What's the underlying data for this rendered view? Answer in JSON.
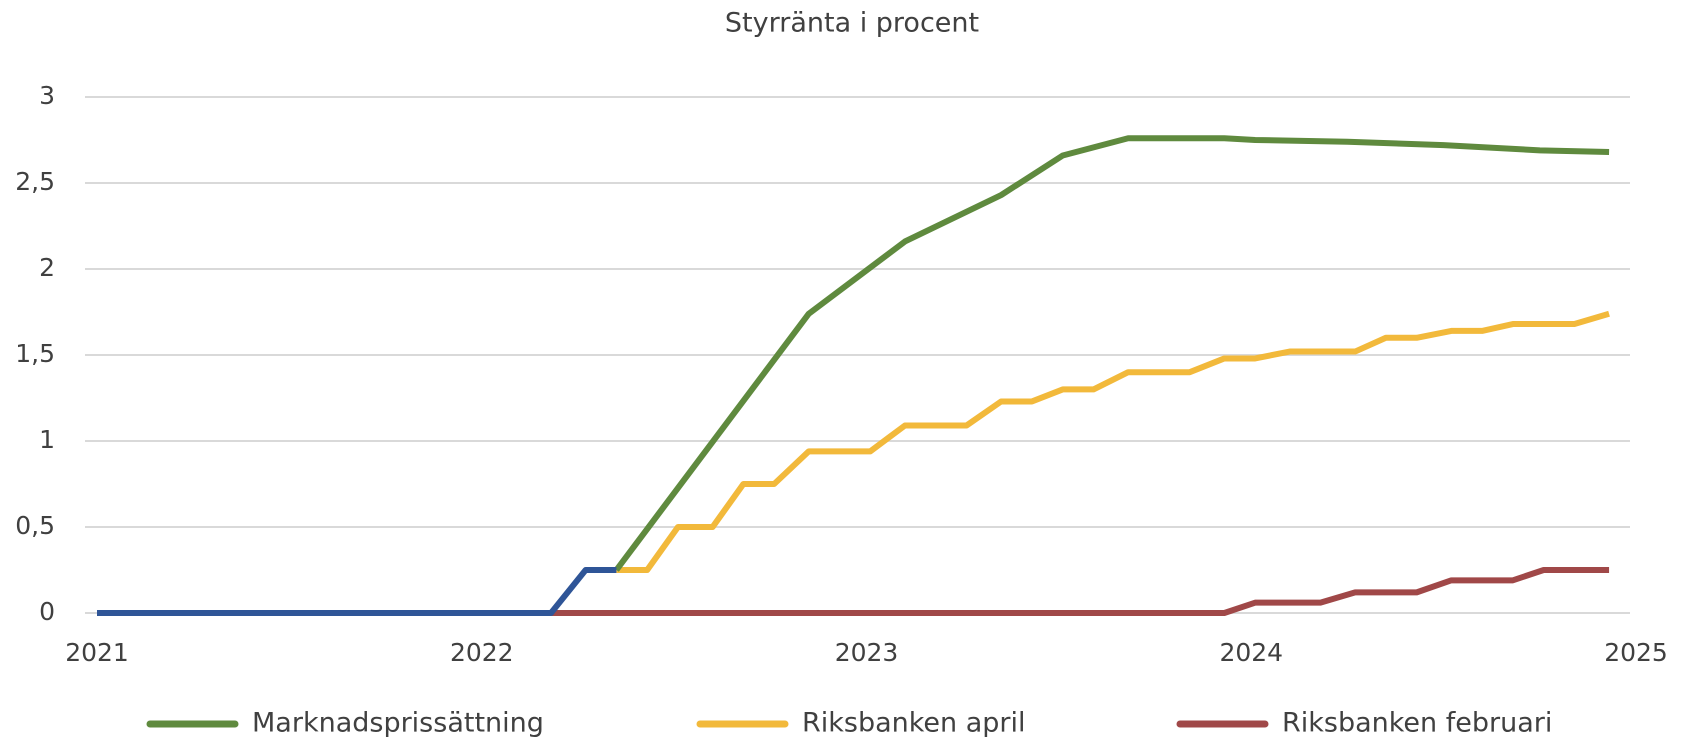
{
  "chart_data": {
    "type": "line",
    "title": "Styrränta i procent",
    "xlim": [
      2021,
      2025
    ],
    "xticks": [
      2021,
      2022,
      2023,
      2024,
      2025
    ],
    "ylim": [
      0,
      3
    ],
    "yticks": [
      0,
      {
        "value": 0.5,
        "label": "0,5"
      },
      1,
      {
        "value": 1.5,
        "label": "1,5"
      },
      2,
      {
        "value": 2.5,
        "label": "2,5"
      },
      3
    ],
    "grid": true,
    "legend": "bottom",
    "series": [
      {
        "name": "Marknadsprissättning",
        "color": "#5f8a3e",
        "x": [
          2022.35,
          2022.85,
          2023.1,
          2023.35,
          2023.51,
          2023.68,
          2023.93,
          2024.01,
          2024.25,
          2024.5,
          2024.75,
          2024.93
        ],
        "values": [
          0.25,
          1.74,
          2.16,
          2.43,
          2.66,
          2.76,
          2.76,
          2.75,
          2.74,
          2.72,
          2.69,
          2.68
        ]
      },
      {
        "name": "Riksbanken april",
        "color": "#f2b93b",
        "x": [
          2022.35,
          2022.43,
          2022.51,
          2022.6,
          2022.68,
          2022.76,
          2022.85,
          2023.01,
          2023.1,
          2023.26,
          2023.35,
          2023.43,
          2023.51,
          2023.59,
          2023.68,
          2023.84,
          2023.93,
          2024.01,
          2024.1,
          2024.27,
          2024.35,
          2024.43,
          2024.52,
          2024.6,
          2024.68,
          2024.84,
          2024.93
        ],
        "values": [
          0.25,
          0.25,
          0.5,
          0.5,
          0.75,
          0.75,
          0.94,
          0.94,
          1.09,
          1.09,
          1.23,
          1.23,
          1.3,
          1.3,
          1.4,
          1.4,
          1.48,
          1.48,
          1.52,
          1.52,
          1.6,
          1.6,
          1.64,
          1.64,
          1.68,
          1.68,
          1.74
        ]
      },
      {
        "name": "Riksbanken februari",
        "color": "#a04848",
        "x": [
          2022.18,
          2023.93,
          2024.01,
          2024.18,
          2024.27,
          2024.43,
          2024.52,
          2024.68,
          2024.76,
          2024.93
        ],
        "values": [
          0,
          0,
          0.06,
          0.06,
          0.12,
          0.12,
          0.19,
          0.19,
          0.25,
          0.25
        ]
      },
      {
        "color": "#2f5597",
        "x": [
          2021.0,
          2022.18,
          2022.27,
          2022.35
        ],
        "values": [
          0,
          0,
          0.25,
          0.25
        ]
      }
    ]
  }
}
